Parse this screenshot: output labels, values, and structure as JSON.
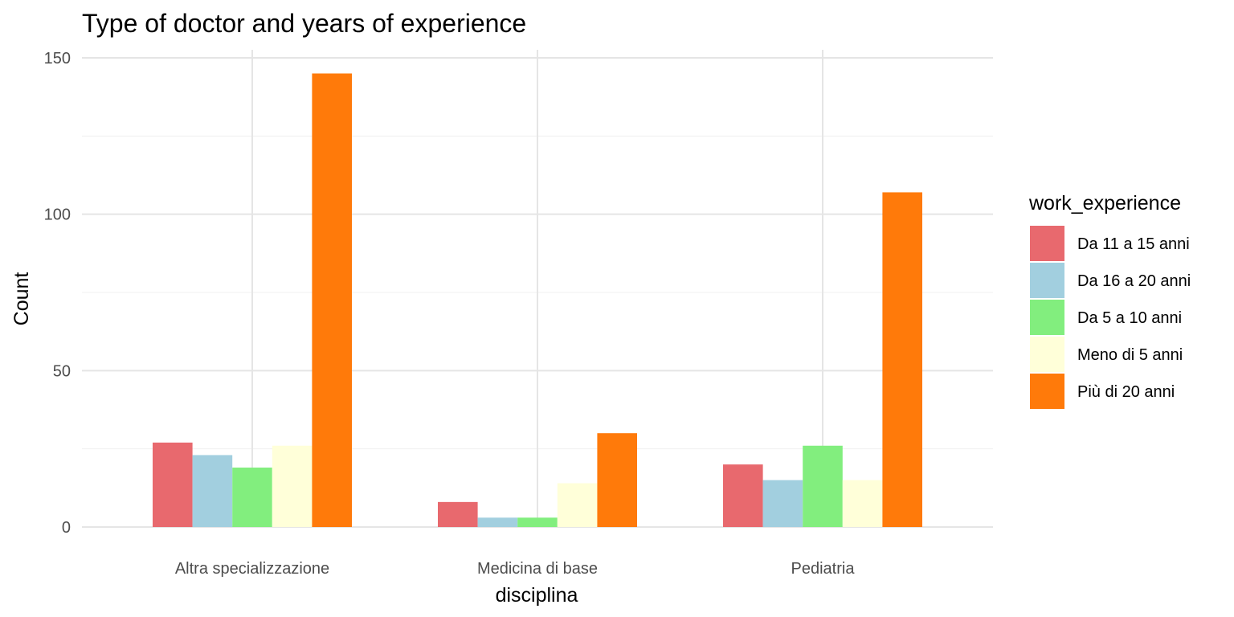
{
  "chart_data": {
    "type": "bar",
    "title": "Type of doctor and years of experience",
    "xlabel": "disciplina",
    "ylabel": "Count",
    "categories": [
      "Altra specializzazione",
      "Medicina di base",
      "Pediatria"
    ],
    "ylim": [
      0,
      150
    ],
    "yticks": [
      0,
      50,
      100,
      150
    ],
    "grid": true,
    "legend": {
      "title": "work_experience",
      "position": "right"
    },
    "series": [
      {
        "name": "Da 11 a 15 anni",
        "color": "#E8696E",
        "values": [
          27,
          8,
          20
        ]
      },
      {
        "name": "Da 16 a 20 anni",
        "color": "#A2CFDF",
        "values": [
          23,
          3,
          15
        ]
      },
      {
        "name": "Da 5 a 10 anni",
        "color": "#82EE7E",
        "values": [
          19,
          3,
          26
        ]
      },
      {
        "name": "Meno di 5 anni",
        "color": "#FFFFD9",
        "values": [
          26,
          14,
          15
        ]
      },
      {
        "name": "Più di 20 anni",
        "color": "#FF7A0A",
        "values": [
          145,
          30,
          107
        ]
      }
    ]
  }
}
